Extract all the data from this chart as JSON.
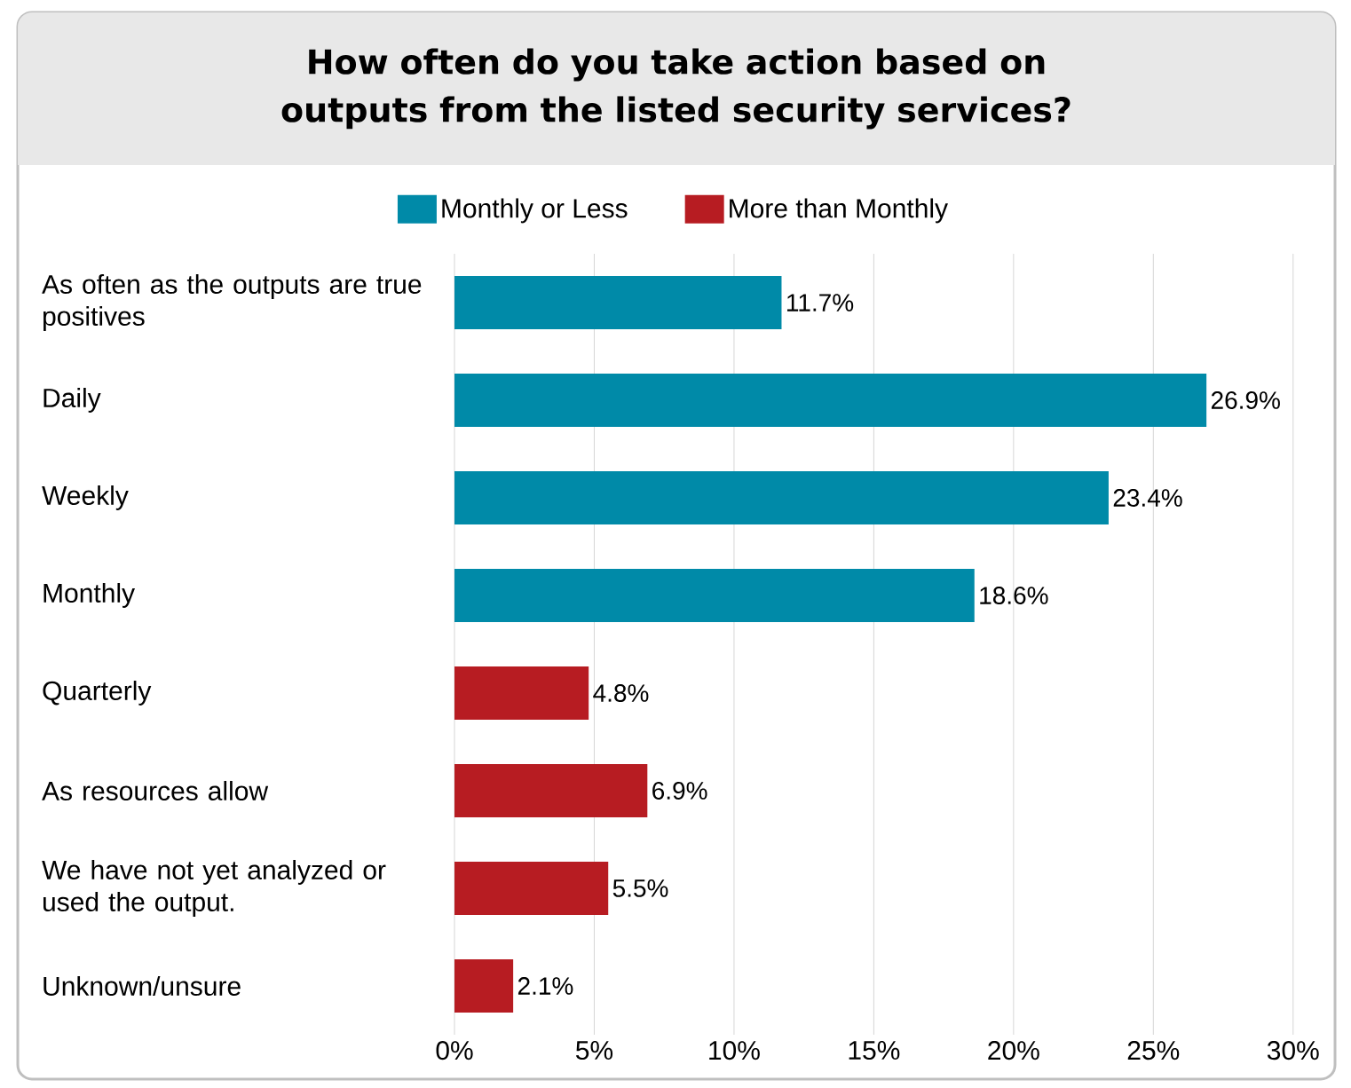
{
  "chart_data": {
    "type": "bar",
    "orientation": "horizontal",
    "title": "How often do you take action based on outputs from the listed security services?",
    "categories": [
      "As often as the outputs are true positives",
      "Daily",
      "Weekly",
      "Monthly",
      "Quarterly",
      "As resources allow",
      "We have not yet analyzed or used the output.",
      "Unknown/unsure"
    ],
    "series": [
      {
        "name": "Monthly or Less",
        "color": "#008aa8",
        "values": [
          11.7,
          26.9,
          23.4,
          18.6,
          null,
          null,
          null,
          null
        ],
        "value_labels": [
          "11.7%",
          "26.9%",
          "23.4%",
          "18.6%",
          null,
          null,
          null,
          null
        ]
      },
      {
        "name": "More than Monthly",
        "color": "#b71c22",
        "values": [
          null,
          null,
          null,
          null,
          4.8,
          6.9,
          5.5,
          2.1
        ],
        "value_labels": [
          null,
          null,
          null,
          null,
          "4.8%",
          "6.9%",
          "5.5%",
          "2.1%"
        ]
      }
    ],
    "xlim": [
      0,
      31.5
    ],
    "xticks": [
      {
        "value": 0,
        "label": "0%"
      },
      {
        "value": 5,
        "label": "5%"
      },
      {
        "value": 10,
        "label": "10%"
      },
      {
        "value": 15,
        "label": "15%"
      },
      {
        "value": 20,
        "label": "20%"
      },
      {
        "value": 25,
        "label": "25%"
      },
      {
        "value": 30,
        "label": "30%"
      }
    ],
    "grid": "x",
    "legend": "top"
  }
}
